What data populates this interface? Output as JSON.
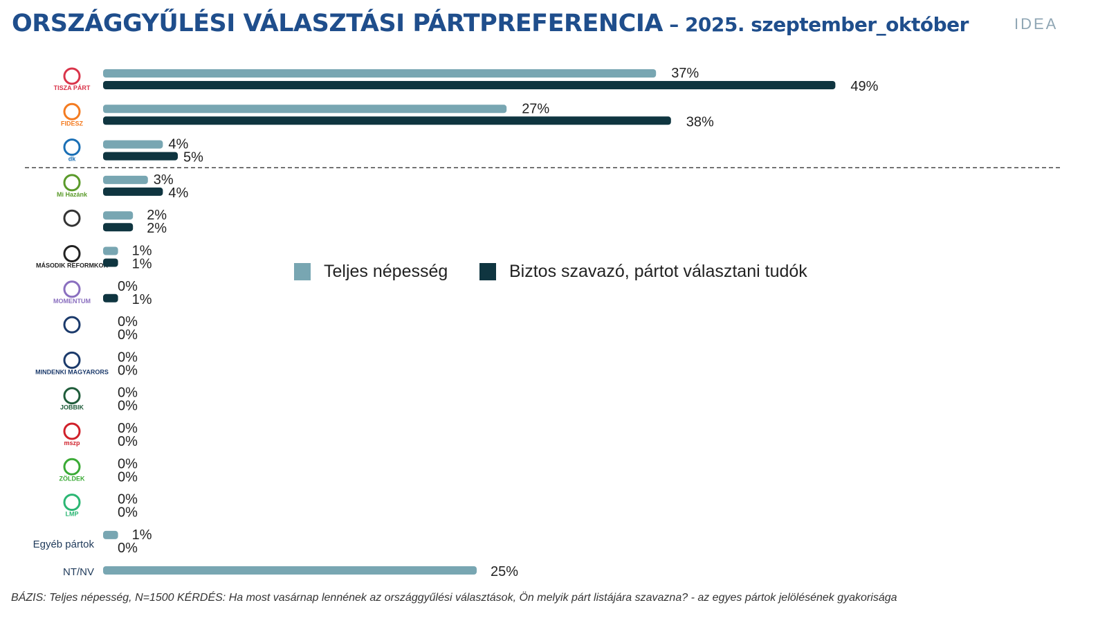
{
  "title": {
    "main": "ORSZÁGGYŰLÉSI VÁLASZTÁSI PÁRTPREFERENCIA",
    "sub": " – 2025. szeptember_október"
  },
  "brand": "IDEA",
  "footer": "BÁZIS: Teljes népesség, N=1500  KÉRDÉS:  Ha most vasárnap lennének az országgyűlési választások, Ön melyik párt listájára szavazna? - az egyes pártok jelölésének gyakorisága",
  "colors": {
    "series1": "#78a6b2",
    "series2": "#0f3540",
    "title": "#1f4e8c"
  },
  "chart_data": {
    "type": "bar",
    "orientation": "horizontal",
    "categories": [
      "TISZA PÁRT",
      "FIDESZ",
      "dk",
      "Mi Hazánk",
      "",
      "MÁSODIK REFORMKOR",
      "MOMENTUM",
      "",
      "MINDENKI MAGYARORSZÁGA NÉPPÁRT",
      "JOBBIK",
      "mszp",
      "ZÖLDEK",
      "LMP",
      "Egyéb pártok",
      "NT/NV"
    ],
    "category_display": [
      "logo",
      "logo",
      "logo",
      "logo",
      "logo",
      "logo",
      "logo",
      "logo",
      "logo",
      "logo",
      "logo",
      "logo",
      "logo",
      "text",
      "text"
    ],
    "series": [
      {
        "name": "Teljes népesség",
        "values": [
          37,
          27,
          4,
          3,
          2,
          1,
          0,
          0,
          0,
          0,
          0,
          0,
          0,
          1,
          25
        ]
      },
      {
        "name": "Biztos szavazó, pártot választani tudók",
        "values": [
          49,
          38,
          5,
          4,
          2,
          1,
          1,
          0,
          0,
          0,
          0,
          0,
          0,
          0,
          null
        ]
      }
    ],
    "value_suffix": "%",
    "legend": "center",
    "separator_after_index": 2,
    "grid": false
  }
}
